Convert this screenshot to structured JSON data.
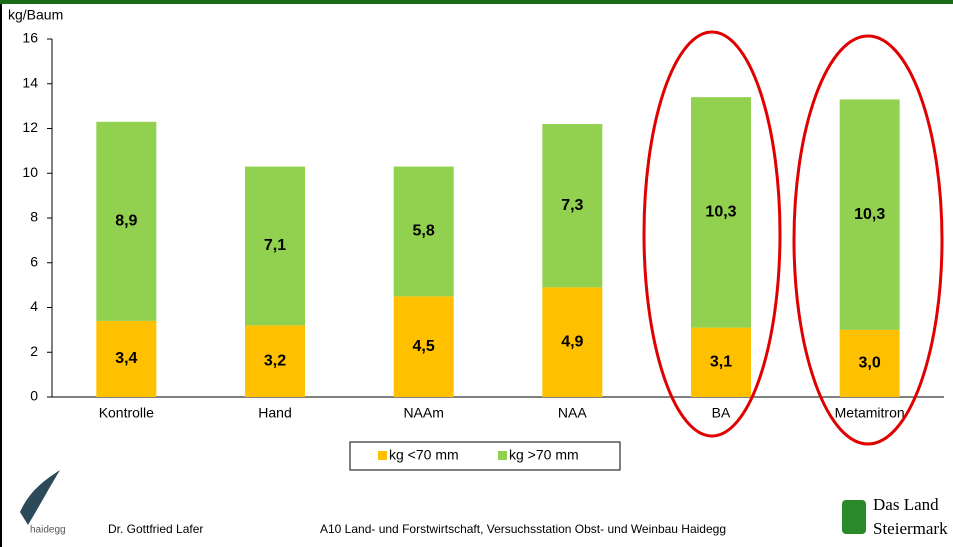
{
  "chart_data": {
    "type": "bar",
    "stacked": true,
    "y_axis_label": "kg/Baum",
    "categories": [
      "Kontrolle",
      "Hand",
      "NAAm",
      "NAA",
      "BA",
      "Metamitron"
    ],
    "series": [
      {
        "name": "kg <70 mm",
        "color": "#FFC000",
        "values": [
          3.4,
          3.2,
          4.5,
          4.9,
          3.1,
          3.0
        ],
        "value_labels": [
          "3,4",
          "3,2",
          "4,5",
          "4,9",
          "3,1",
          "3,0"
        ]
      },
      {
        "name": "kg >70 mm",
        "color": "#92D050",
        "values": [
          8.9,
          7.1,
          5.8,
          7.3,
          10.3,
          10.3
        ],
        "value_labels": [
          "8,9",
          "7,1",
          "5,8",
          "7,3",
          "10,3",
          "10,3"
        ]
      }
    ],
    "ylim": [
      0,
      16
    ],
    "yticks": [
      0,
      2,
      4,
      6,
      8,
      10,
      12,
      14,
      16
    ],
    "grid": false,
    "legend": "bottom"
  },
  "footer": {
    "logo": "haidegg",
    "author": "Dr. Gottfried Lafer",
    "institution": "A10 Land- und Forstwirtschaft, Versuchsstation Obst- und Weinbau Haidegg",
    "brand_line1": "Das Land",
    "brand_line2": "Steiermark"
  }
}
